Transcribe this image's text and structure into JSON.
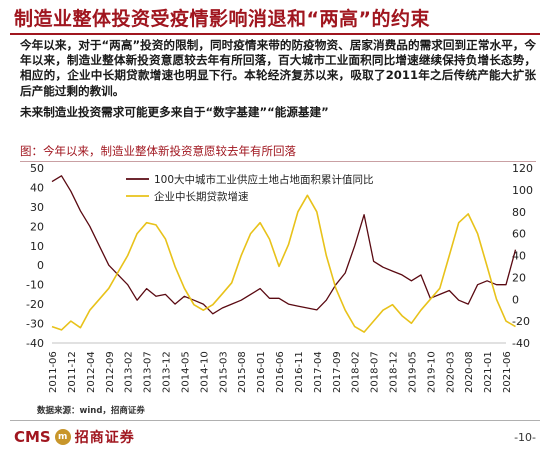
{
  "title": "制造业整体投资受疫情影响消退和“两高”的约束",
  "bullets": [
    "今年以来，对于“两高”投资的限制，同时疫情来带的防疫物资、居家消费品的需求回到正常水平，今年以来，制造业整体新投资意愿较去年有所回落，百大城市工业面积同比增速继续保持负增长态势，相应的，企业中长期贷款增速也明显下行。本轮经济复苏以来，吸取了2011年之后传统产能大扩张后产能过剩的教训。",
    "未来制造业投资需求可能更多来自于“数字基建”“能源基建”"
  ],
  "chart_title": "图：今年以来，制造业整体新投资意愿较去年有所回落",
  "source": "数据来源：wind，招商证券",
  "footer": {
    "logo_text": "CMS",
    "logo_mark": "m",
    "logo_cn": "招商证券",
    "page": "-10-"
  },
  "colors": {
    "title": "#a0161f",
    "series_land": "#5a0a12",
    "series_loan": "#e8c21a"
  },
  "chart_data": {
    "type": "line",
    "title": "图：今年以来，制造业整体新投资意愿较去年有所回落",
    "x_ticks": [
      "2011-06",
      "2011-12",
      "2012-04",
      "2012-09",
      "2013-02",
      "2013-07",
      "2013-12",
      "2014-05",
      "2014-10",
      "2015-03",
      "2015-08",
      "2016-01",
      "2016-06",
      "2016-11",
      "2017-04",
      "2017-09",
      "2018-02",
      "2018-07",
      "2018-12",
      "2019-05",
      "2019-10",
      "2020-03",
      "2020-08",
      "2021-01",
      "2021-06"
    ],
    "y_left": {
      "range": [
        -40,
        50
      ],
      "ticks": [
        -40,
        -30,
        -20,
        -10,
        0,
        10,
        20,
        30,
        40,
        50
      ]
    },
    "y_right": {
      "range": [
        -40,
        120
      ],
      "ticks": [
        -40,
        -20,
        0,
        20,
        40,
        60,
        80,
        100,
        120
      ]
    },
    "legend_position": "top-center",
    "grid": false,
    "series": [
      {
        "name": "100大中城市工业供应土地占地面积累计值同比",
        "axis": "left",
        "color": "#5a0a12",
        "x": [
          0,
          0.5,
          1,
          1.5,
          2,
          2.5,
          3,
          3.5,
          4,
          4.5,
          5,
          5.5,
          6,
          6.5,
          7,
          7.5,
          8,
          8.5,
          9,
          9.5,
          10,
          10.5,
          11,
          11.5,
          12,
          12.5,
          13,
          13.5,
          14,
          14.5,
          15,
          15.5,
          16,
          16.5,
          17,
          17.5,
          18,
          18.5,
          19,
          19.5,
          20,
          20.5,
          21,
          21.5,
          22,
          22.5,
          23,
          23.5,
          24,
          24.5
        ],
        "y": [
          43,
          46,
          38,
          28,
          20,
          10,
          0,
          -5,
          -10,
          -18,
          -12,
          -16,
          -15,
          -20,
          -16,
          -18,
          -20,
          -25,
          -22,
          -20,
          -18,
          -15,
          -12,
          -17,
          -17,
          -20,
          -21,
          -22,
          -23,
          -18,
          -10,
          -4,
          10,
          26,
          2,
          -1,
          -3,
          -5,
          -8,
          -5,
          -17,
          -15,
          -13,
          -18,
          -20,
          -10,
          -8,
          -10,
          -10,
          8
        ]
      },
      {
        "name": "企业中长期贷款增速",
        "axis": "right",
        "color": "#e8c21a",
        "x": [
          0,
          0.5,
          1,
          1.5,
          2,
          2.5,
          3,
          3.5,
          4,
          4.5,
          5,
          5.5,
          6,
          6.5,
          7,
          7.5,
          8,
          8.5,
          9,
          9.5,
          10,
          10.5,
          11,
          11.5,
          12,
          12.5,
          13,
          13.5,
          14,
          14.5,
          15,
          15.5,
          16,
          16.5,
          17,
          17.5,
          18,
          18.5,
          19,
          19.5,
          20,
          20.5,
          21,
          21.5,
          22,
          22.5,
          23,
          23.5,
          24,
          24.5
        ],
        "y": [
          -25,
          -28,
          -20,
          -26,
          -10,
          0,
          10,
          25,
          40,
          60,
          70,
          68,
          55,
          30,
          10,
          -5,
          -10,
          -5,
          5,
          15,
          40,
          60,
          70,
          55,
          30,
          50,
          80,
          95,
          80,
          40,
          10,
          -10,
          -25,
          -30,
          -20,
          -10,
          -5,
          -15,
          -22,
          -10,
          0,
          10,
          40,
          70,
          78,
          60,
          30,
          0,
          -20,
          -25
        ]
      }
    ]
  }
}
